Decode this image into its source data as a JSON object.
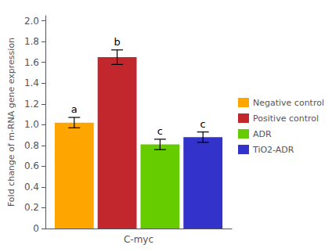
{
  "chart_data": {
    "type": "bar",
    "categories": [
      "C-myc"
    ],
    "series": [
      {
        "name": "Negative control",
        "color": "#FFA500",
        "values": [
          1.02
        ],
        "errors": [
          0.05
        ],
        "annotations": [
          "a"
        ]
      },
      {
        "name": "Positive control",
        "color": "#C1272D",
        "values": [
          1.65
        ],
        "errors": [
          0.07
        ],
        "annotations": [
          "b"
        ]
      },
      {
        "name": "ADR",
        "color": "#66CC00",
        "values": [
          0.81
        ],
        "errors": [
          0.05
        ],
        "annotations": [
          "c"
        ]
      },
      {
        "name": "TiO2-ADR",
        "color": "#3333CC",
        "values": [
          0.88
        ],
        "errors": [
          0.05
        ],
        "annotations": [
          "c"
        ]
      }
    ],
    "ylabel": "Fold change of m-RNA gene expression",
    "ylim": [
      0,
      2.05
    ],
    "yticks": [
      0,
      0.2,
      0.4,
      0.6,
      0.8,
      {
        "value": 1,
        "label": "1.0"
      },
      1.2,
      1.4,
      1.6,
      1.8,
      {
        "value": 2,
        "label": "2.0"
      }
    ],
    "grid": false,
    "legend": "right"
  }
}
